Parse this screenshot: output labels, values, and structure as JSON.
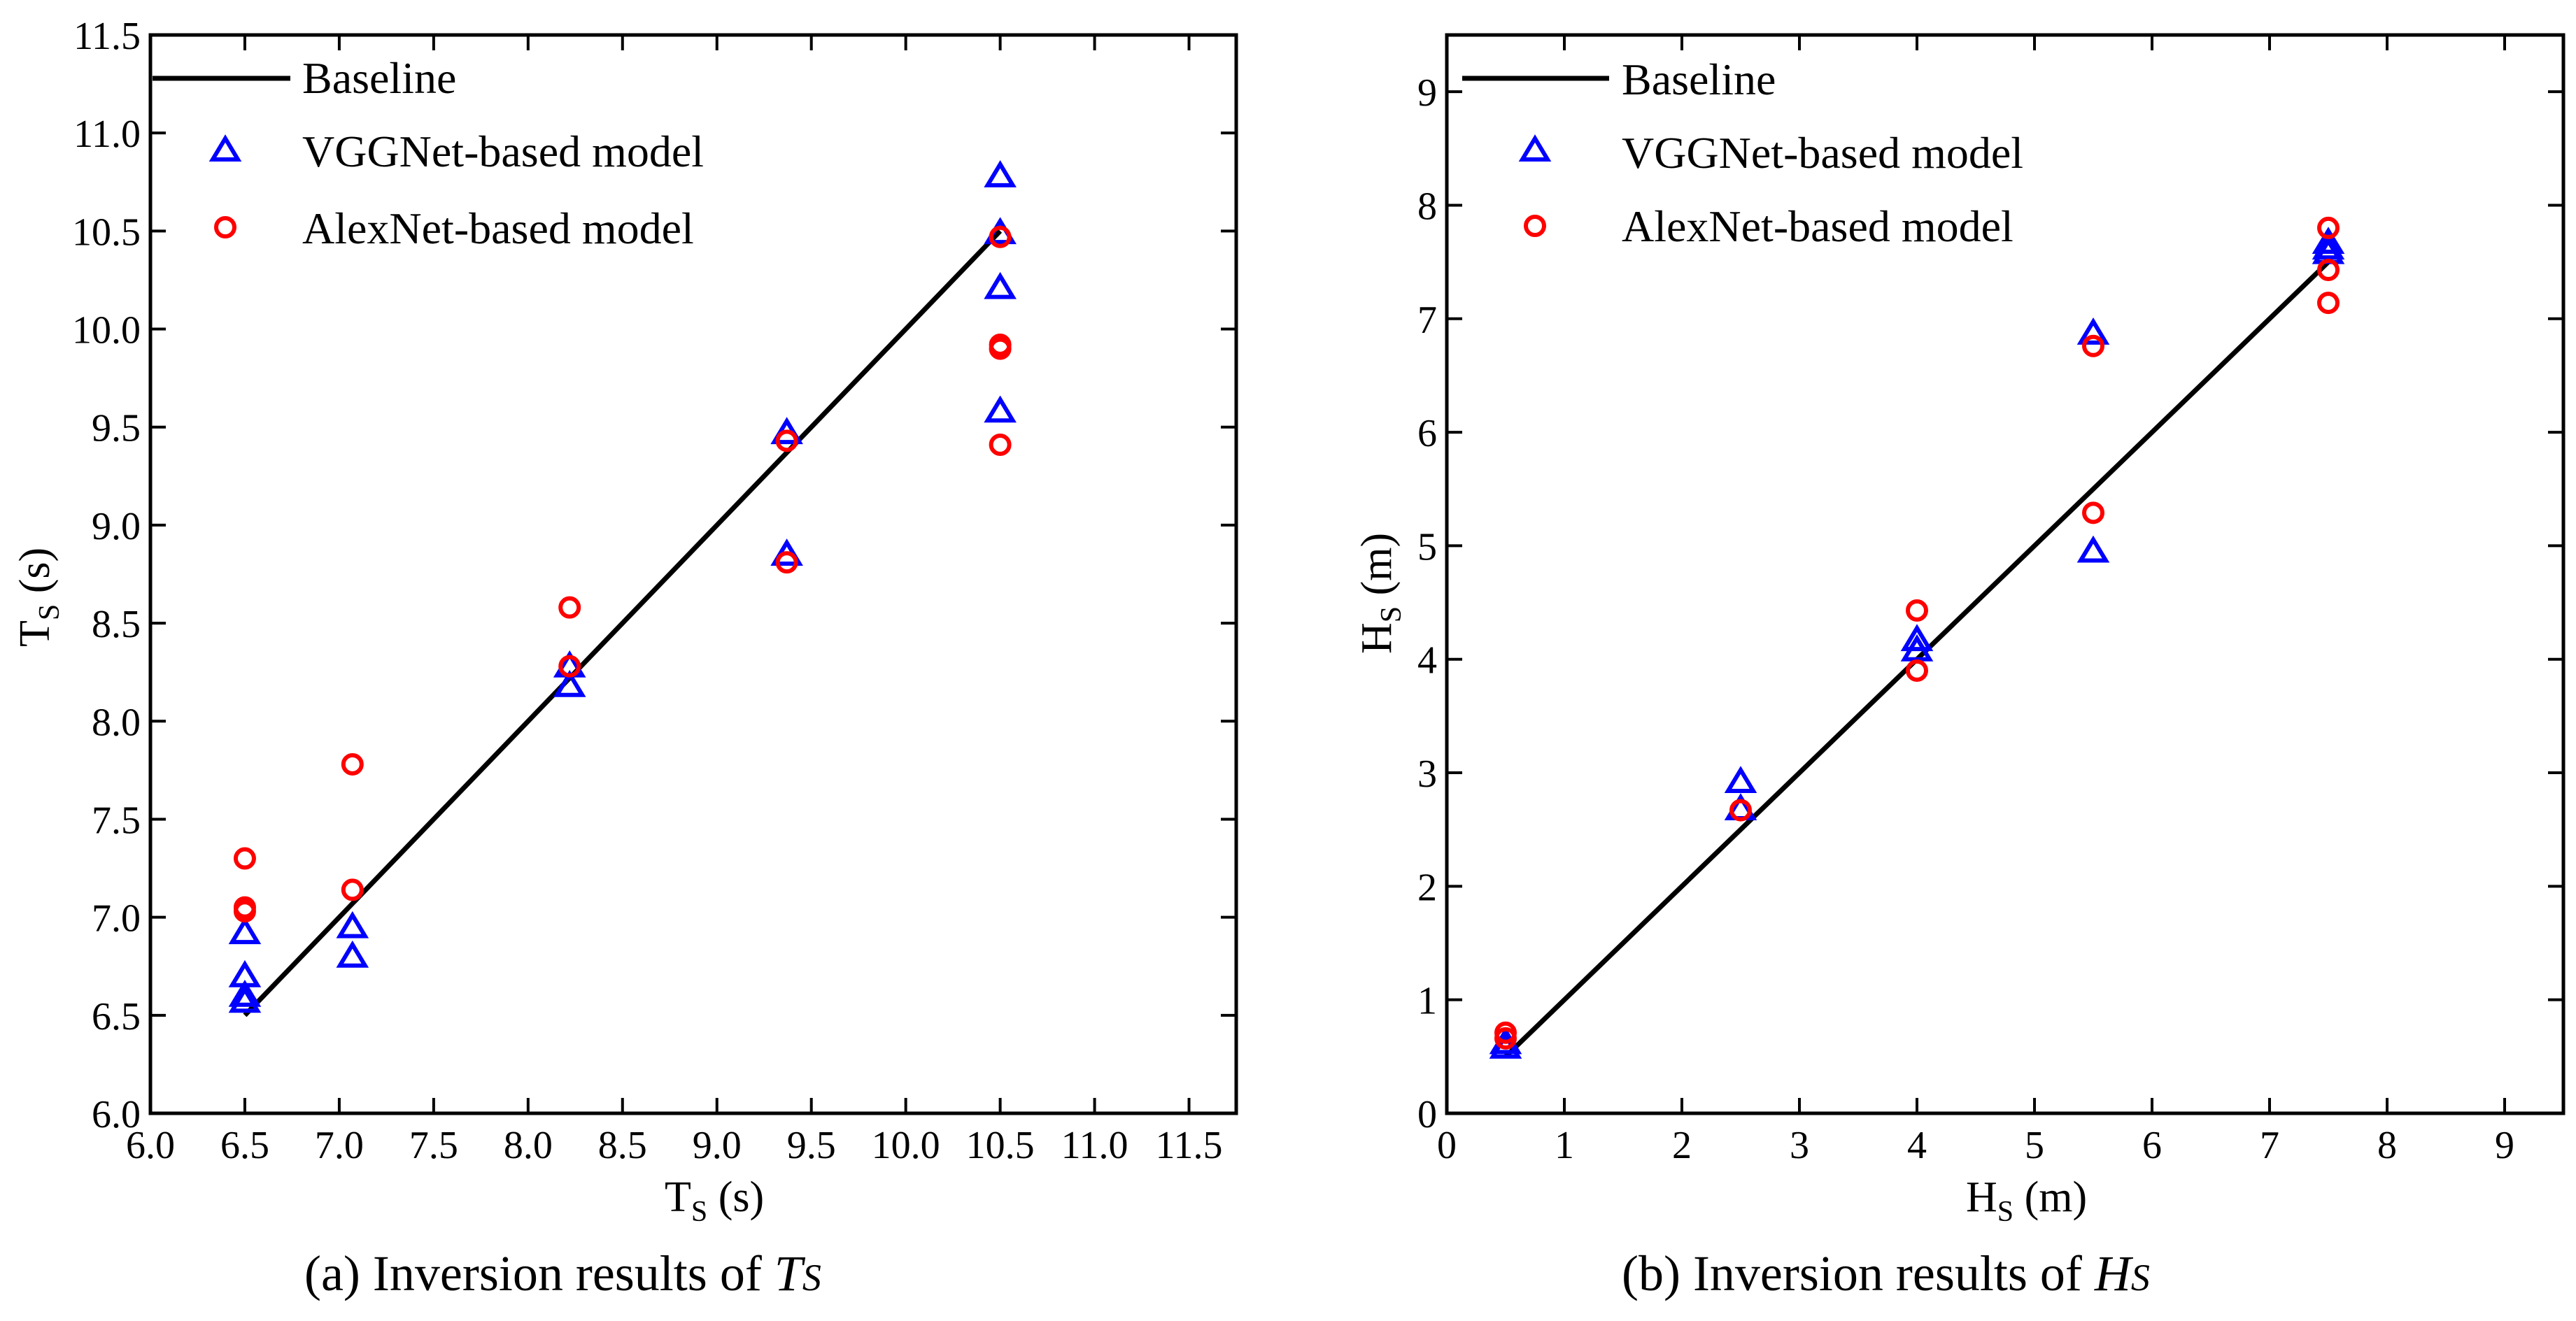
{
  "colors": {
    "baseline": "#000000",
    "vggnet": "#0000ff",
    "alexnet": "#ff0000",
    "axes": "#000000",
    "background": "#ffffff"
  },
  "chart_data": [
    {
      "type": "scatter",
      "panel": "a",
      "caption": {
        "prefix": "(a) Inversion results of ",
        "symbol": "T",
        "subscript": "S"
      },
      "xlabel": {
        "symbol": "T",
        "subscript": "S",
        "unit": " (s)"
      },
      "ylabel": {
        "symbol": "T",
        "subscript": "S",
        "unit": " (s)"
      },
      "xlim": [
        6.0,
        11.75
      ],
      "ylim": [
        6.0,
        11.5
      ],
      "xticks": [
        "6.0",
        "6.5",
        "7.0",
        "7.5",
        "8.0",
        "8.5",
        "9.0",
        "9.5",
        "10.0",
        "10.5",
        "11.0",
        "11.5"
      ],
      "yticks": [
        "6.0",
        "6.5",
        "7.0",
        "7.5",
        "8.0",
        "8.5",
        "9.0",
        "9.5",
        "10.0",
        "10.5",
        "11.0",
        "11.5"
      ],
      "legend_position": "top-left",
      "series": [
        {
          "name": "Baseline",
          "marker": "line",
          "points": [
            [
              6.5,
              6.5
            ],
            [
              10.5,
              10.5
            ]
          ]
        },
        {
          "name": "VGGNet-based model",
          "marker": "triangle",
          "points": [
            [
              6.5,
              6.92
            ],
            [
              6.5,
              6.7
            ],
            [
              6.5,
              6.6
            ],
            [
              6.5,
              6.57
            ],
            [
              7.07,
              6.95
            ],
            [
              7.07,
              6.8
            ],
            [
              8.22,
              8.28
            ],
            [
              8.22,
              8.18
            ],
            [
              9.37,
              9.47
            ],
            [
              9.37,
              8.85
            ],
            [
              10.5,
              10.78
            ],
            [
              10.5,
              10.49
            ],
            [
              10.5,
              10.21
            ],
            [
              10.5,
              9.58
            ]
          ]
        },
        {
          "name": "AlexNet-based model",
          "marker": "circle",
          "points": [
            [
              6.5,
              7.3
            ],
            [
              6.5,
              7.05
            ],
            [
              6.5,
              7.03
            ],
            [
              7.07,
              7.78
            ],
            [
              7.07,
              7.14
            ],
            [
              8.22,
              8.58
            ],
            [
              8.22,
              8.28
            ],
            [
              9.37,
              9.43
            ],
            [
              9.37,
              8.81
            ],
            [
              10.5,
              10.47
            ],
            [
              10.5,
              9.92
            ],
            [
              10.5,
              9.9
            ],
            [
              10.5,
              9.41
            ]
          ]
        }
      ]
    },
    {
      "type": "scatter",
      "panel": "b",
      "caption": {
        "prefix": "(b) Inversion results of ",
        "symbol": "H",
        "subscript": "S"
      },
      "xlabel": {
        "symbol": "H",
        "subscript": "S",
        "unit": " (m)"
      },
      "ylabel": {
        "symbol": "H",
        "subscript": "S",
        "unit": " (m)"
      },
      "xlim": [
        0,
        9.5
      ],
      "ylim": [
        0,
        9.5
      ],
      "xticks": [
        "0",
        "1",
        "2",
        "3",
        "4",
        "5",
        "6",
        "7",
        "8",
        "9"
      ],
      "yticks": [
        "0",
        "1",
        "2",
        "3",
        "4",
        "5",
        "6",
        "7",
        "8",
        "9"
      ],
      "legend_position": "top-left",
      "series": [
        {
          "name": "Baseline",
          "marker": "line",
          "points": [
            [
              0.5,
              0.5
            ],
            [
              7.5,
              7.5
            ]
          ]
        },
        {
          "name": "VGGNet-based model",
          "marker": "triangle",
          "points": [
            [
              0.5,
              0.62
            ],
            [
              0.5,
              0.58
            ],
            [
              2.5,
              2.92
            ],
            [
              2.5,
              2.68
            ],
            [
              4.0,
              4.17
            ],
            [
              4.0,
              4.08
            ],
            [
              5.5,
              6.87
            ],
            [
              5.5,
              4.95
            ],
            [
              7.5,
              7.67
            ],
            [
              7.5,
              7.62
            ],
            [
              7.5,
              7.58
            ]
          ]
        },
        {
          "name": "AlexNet-based model",
          "marker": "circle",
          "points": [
            [
              0.5,
              0.71
            ],
            [
              0.5,
              0.66
            ],
            [
              2.5,
              2.67
            ],
            [
              4.0,
              4.43
            ],
            [
              4.0,
              3.9
            ],
            [
              5.5,
              6.76
            ],
            [
              5.5,
              5.29
            ],
            [
              7.5,
              7.8
            ],
            [
              7.5,
              7.43
            ],
            [
              7.5,
              7.14
            ]
          ]
        }
      ]
    }
  ]
}
